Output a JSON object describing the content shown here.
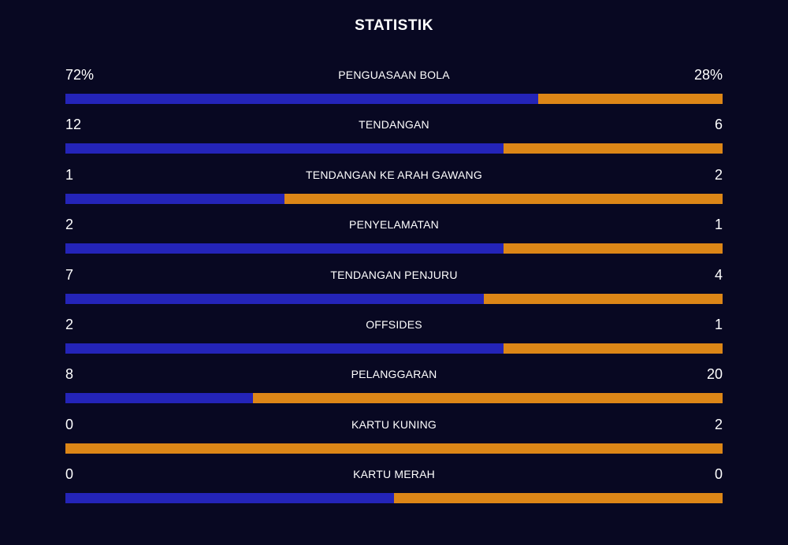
{
  "title": "STATISTIK",
  "colors": {
    "background": "#080822",
    "home": "#2424b8",
    "away": "#dc8617",
    "text": "#ffffff"
  },
  "stats": [
    {
      "label": "PENGUASAAN BOLA",
      "home": "72%",
      "away": "28%",
      "home_share": 0.72
    },
    {
      "label": "TENDANGAN",
      "home": "12",
      "away": "6",
      "home_share": 0.6667
    },
    {
      "label": "TENDANGAN KE ARAH GAWANG",
      "home": "1",
      "away": "2",
      "home_share": 0.3333
    },
    {
      "label": "PENYELAMATAN",
      "home": "2",
      "away": "1",
      "home_share": 0.6667
    },
    {
      "label": "TENDANGAN PENJURU",
      "home": "7",
      "away": "4",
      "home_share": 0.6364
    },
    {
      "label": "OFFSIDES",
      "home": "2",
      "away": "1",
      "home_share": 0.6667
    },
    {
      "label": "PELANGGARAN",
      "home": "8",
      "away": "20",
      "home_share": 0.2857
    },
    {
      "label": "KARTU KUNING",
      "home": "0",
      "away": "2",
      "home_share": 0
    },
    {
      "label": "KARTU MERAH",
      "home": "0",
      "away": "0",
      "home_share": 0.5
    }
  ]
}
